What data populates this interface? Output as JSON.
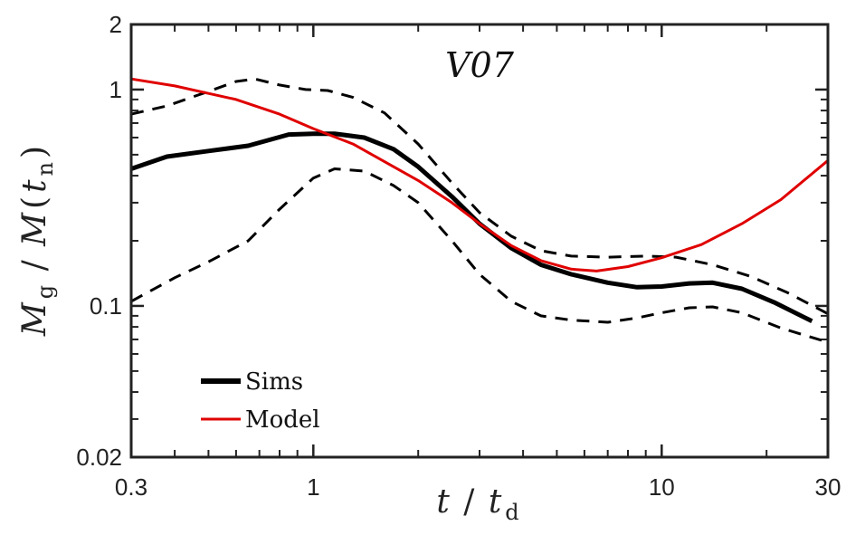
{
  "chart_data": {
    "type": "line",
    "title": "V07",
    "xscale": "log",
    "yscale": "log",
    "xlim": [
      0.3,
      30
    ],
    "ylim": [
      0.02,
      2
    ],
    "xticks": [
      0.3,
      1,
      10,
      30
    ],
    "xtick_labels": [
      "0.3",
      "1",
      "10",
      "30"
    ],
    "yticks": [
      0.02,
      0.1,
      1,
      2
    ],
    "ytick_labels": [
      "0.02",
      "0.1",
      "1",
      "2"
    ],
    "xlabel": {
      "var": "t",
      "sep": " / ",
      "var2": "t",
      "sub2": "d"
    },
    "ylabel": {
      "var": "M",
      "sub": "g",
      "sep": " / ",
      "var2": "M",
      "paren_open": "(",
      "var3": "t",
      "sub3": "n",
      "paren_close": ")"
    },
    "grid": false,
    "legend_position": "bottom-left",
    "series": [
      {
        "name": "Sims",
        "color": "#000000",
        "style": "solid-thick",
        "x": [
          0.3,
          0.38,
          0.5,
          0.65,
          0.85,
          1.0,
          1.15,
          1.4,
          1.7,
          2.0,
          2.5,
          3.0,
          3.7,
          4.5,
          5.5,
          7.0,
          8.5,
          10.0,
          12.0,
          14.0,
          17.0,
          21.0,
          27.0
        ],
        "values": [
          0.43,
          0.49,
          0.52,
          0.55,
          0.62,
          0.625,
          0.625,
          0.6,
          0.53,
          0.44,
          0.32,
          0.24,
          0.185,
          0.155,
          0.14,
          0.128,
          0.122,
          0.123,
          0.127,
          0.128,
          0.12,
          0.104,
          0.085
        ]
      },
      {
        "name": "Model",
        "color": "#e00000",
        "style": "solid",
        "x": [
          0.3,
          0.4,
          0.5,
          0.6,
          0.8,
          1.0,
          1.3,
          1.7,
          2.0,
          2.5,
          3.0,
          3.7,
          4.5,
          5.5,
          6.5,
          8.0,
          10.0,
          13.0,
          17.0,
          22.0,
          30.0
        ],
        "values": [
          1.12,
          1.04,
          0.96,
          0.9,
          0.77,
          0.66,
          0.56,
          0.44,
          0.38,
          0.3,
          0.24,
          0.19,
          0.162,
          0.148,
          0.145,
          0.152,
          0.167,
          0.192,
          0.24,
          0.31,
          0.47
        ]
      },
      {
        "name": "",
        "color": "#000000",
        "style": "dashed",
        "x": [
          0.3,
          0.38,
          0.5,
          0.6,
          0.68,
          0.8,
          0.95,
          1.1,
          1.3,
          1.6,
          2.0,
          2.5,
          3.0,
          3.7,
          4.5,
          5.5,
          7.0,
          9.0,
          11.0,
          14.0,
          18.0,
          23.0,
          30.0
        ],
        "values": [
          0.77,
          0.84,
          0.98,
          1.09,
          1.12,
          1.05,
          1.0,
          0.99,
          0.92,
          0.78,
          0.56,
          0.37,
          0.27,
          0.21,
          0.18,
          0.17,
          0.168,
          0.17,
          0.168,
          0.155,
          0.137,
          0.115,
          0.092
        ]
      },
      {
        "name": "",
        "color": "#000000",
        "style": "dashed",
        "x": [
          0.3,
          0.4,
          0.5,
          0.65,
          0.8,
          1.0,
          1.15,
          1.4,
          1.7,
          2.0,
          2.5,
          3.0,
          3.7,
          4.5,
          5.5,
          7.0,
          8.5,
          10.0,
          12.0,
          14.0,
          17.0,
          22.0,
          30.0
        ],
        "values": [
          0.105,
          0.135,
          0.16,
          0.2,
          0.28,
          0.39,
          0.43,
          0.42,
          0.36,
          0.3,
          0.2,
          0.14,
          0.105,
          0.09,
          0.086,
          0.084,
          0.088,
          0.093,
          0.098,
          0.099,
          0.093,
          0.079,
          0.068
        ]
      }
    ],
    "legend": [
      {
        "label": "Sims",
        "color": "#000000",
        "style": "solid-thick"
      },
      {
        "label": "Model",
        "color": "#e00000",
        "style": "solid"
      }
    ]
  }
}
